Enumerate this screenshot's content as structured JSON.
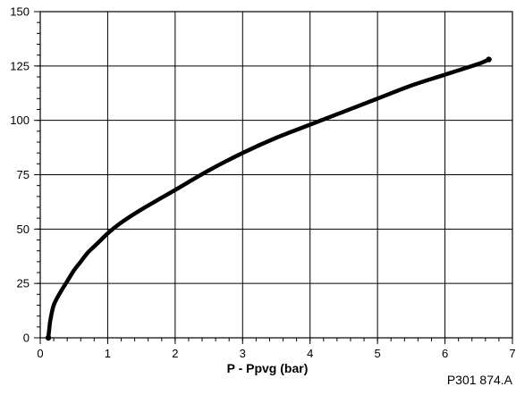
{
  "chart_data": {
    "type": "line",
    "title": "",
    "xlabel": "P - Ppvg (bar)",
    "ylabel": "",
    "xlim": [
      0,
      7
    ],
    "ylim": [
      0,
      150
    ],
    "x_ticks": [
      0,
      1,
      2,
      3,
      4,
      5,
      6,
      7
    ],
    "y_ticks": [
      0,
      25,
      50,
      75,
      100,
      125,
      150
    ],
    "x_minor_step": 0.2,
    "y_minor_step": 5,
    "grid": true,
    "legend": "none",
    "line_color": "#000000",
    "series": [
      {
        "x": [
          0.12,
          0.13,
          0.15,
          0.2,
          0.3,
          0.4,
          0.5,
          0.6,
          0.7,
          0.8,
          0.9,
          1.0,
          1.2,
          1.5,
          2.0,
          2.5,
          3.0,
          3.5,
          4.0,
          4.5,
          5.0,
          5.5,
          6.0,
          6.5,
          6.65
        ],
        "y": [
          0,
          3,
          8,
          15,
          21,
          26,
          31,
          35,
          39,
          42,
          45,
          48,
          53,
          59,
          68,
          77,
          85,
          92,
          98,
          104,
          110,
          116,
          121,
          126,
          128
        ]
      }
    ]
  },
  "figure_code": "P301 874.A"
}
